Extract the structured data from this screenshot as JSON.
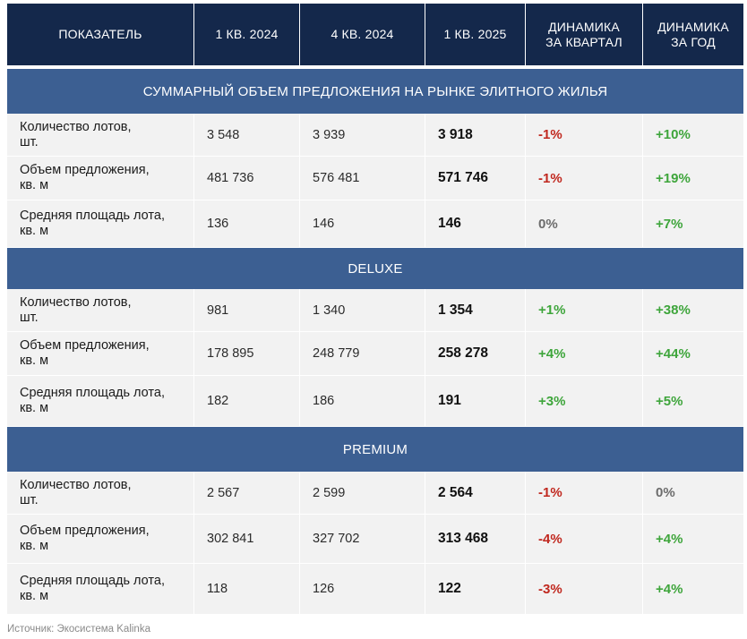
{
  "header": {
    "col1": "ПОКАЗАТЕЛЬ",
    "col2": "1 КВ. 2024",
    "col3": "4 КВ. 2024",
    "col4": "1 КВ. 2025",
    "col5": "ДИНАМИКА\nЗА КВАРТАЛ",
    "col6": "ДИНАМИКА\nЗА ГОД"
  },
  "sections": [
    {
      "title": "СУММАРНЫЙ ОБЪЕМ ПРЕДЛОЖЕНИЯ НА РЫНКЕ ЭЛИТНОГО ЖИЛЬЯ",
      "rows": [
        {
          "label": "Количество лотов,\nшт.",
          "q1_2024": "3 548",
          "q4_2024": "3 939",
          "q1_2025": "3 918",
          "qoq": "-1%",
          "yoy": "+10%"
        },
        {
          "label": "Объем предложения,\nкв. м",
          "q1_2024": "481 736",
          "q4_2024": "576 481",
          "q1_2025": "571 746",
          "qoq": "-1%",
          "yoy": "+19%"
        },
        {
          "label": "Средняя площадь лота,\nкв. м",
          "q1_2024": "136",
          "q4_2024": "146",
          "q1_2025": "146",
          "qoq": "0%",
          "yoy": "+7%"
        }
      ]
    },
    {
      "title": "DELUXE",
      "rows": [
        {
          "label": "Количество лотов,\nшт.",
          "q1_2024": "981",
          "q4_2024": "1 340",
          "q1_2025": "1 354",
          "qoq": "+1%",
          "yoy": "+38%"
        },
        {
          "label": "Объем предложения,\nкв. м",
          "q1_2024": "178 895",
          "q4_2024": "248 779",
          "q1_2025": "258 278",
          "qoq": "+4%",
          "yoy": "+44%"
        },
        {
          "label": "Средняя площадь лота,\nкв. м",
          "q1_2024": "182",
          "q4_2024": "186",
          "q1_2025": "191",
          "qoq": "+3%",
          "yoy": "+5%"
        }
      ]
    },
    {
      "title": "PREMIUM",
      "rows": [
        {
          "label": "Количество лотов,\nшт.",
          "q1_2024": "2 567",
          "q4_2024": "2 599",
          "q1_2025": "2 564",
          "qoq": "-1%",
          "yoy": "0%"
        },
        {
          "label": "Объем предложения,\nкв. м",
          "q1_2024": "302 841",
          "q4_2024": "327 702",
          "q1_2025": "313 468",
          "qoq": "-4%",
          "yoy": "+4%"
        },
        {
          "label": "Средняя площадь лота,\nкв. м",
          "q1_2024": "118",
          "q4_2024": "126",
          "q1_2025": "122",
          "qoq": "-3%",
          "yoy": "+4%"
        }
      ]
    }
  ],
  "source": "Источник: Экосистема Kalinka",
  "colors": {
    "header_bg": "#14284b",
    "section_bg": "#3c5f92",
    "row_bg": "#f2f2f2",
    "negative": "#c0281f",
    "positive": "#3ea53b",
    "neutral": "#6c6c6c"
  }
}
